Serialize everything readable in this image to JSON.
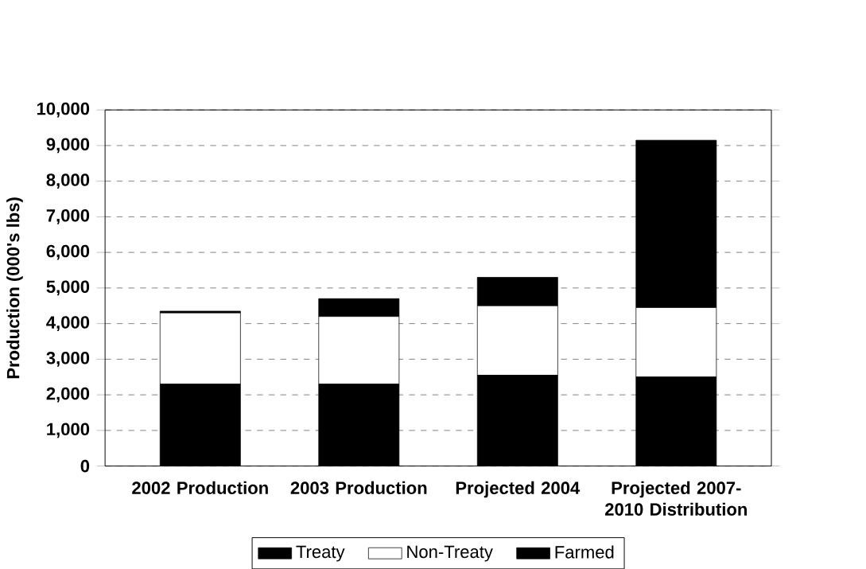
{
  "chart_data": {
    "type": "bar",
    "stacked": true,
    "ylabel": "Production (000's lbs)",
    "categories": [
      "2002 Production",
      "2003 Production",
      "Projected 2004",
      "Projected 2007-2010 Distribution"
    ],
    "series": [
      {
        "name": "Treaty",
        "color": "#000000",
        "values": [
          2300,
          2300,
          2550,
          2500
        ]
      },
      {
        "name": "Non-Treaty",
        "color": "#ffffff",
        "values": [
          2000,
          1900,
          1950,
          1950
        ]
      },
      {
        "name": "Farmed",
        "color": "#000000",
        "values": [
          50,
          500,
          800,
          4700
        ]
      }
    ],
    "ylim": [
      0,
      10000
    ],
    "yticks": [
      {
        "value": 0,
        "label": "0"
      },
      {
        "value": 1000,
        "label": "1,000"
      },
      {
        "value": 2000,
        "label": "2,000"
      },
      {
        "value": 3000,
        "label": "3,000"
      },
      {
        "value": 4000,
        "label": "4,000"
      },
      {
        "value": 5000,
        "label": "5,000"
      },
      {
        "value": 6000,
        "label": "6,000"
      },
      {
        "value": 7000,
        "label": "7,000"
      },
      {
        "value": 8000,
        "label": "8,000"
      },
      {
        "value": 9000,
        "label": "9,000"
      },
      {
        "value": 10000,
        "label": "10,000"
      }
    ],
    "grid": "y",
    "legend": "bottom"
  }
}
